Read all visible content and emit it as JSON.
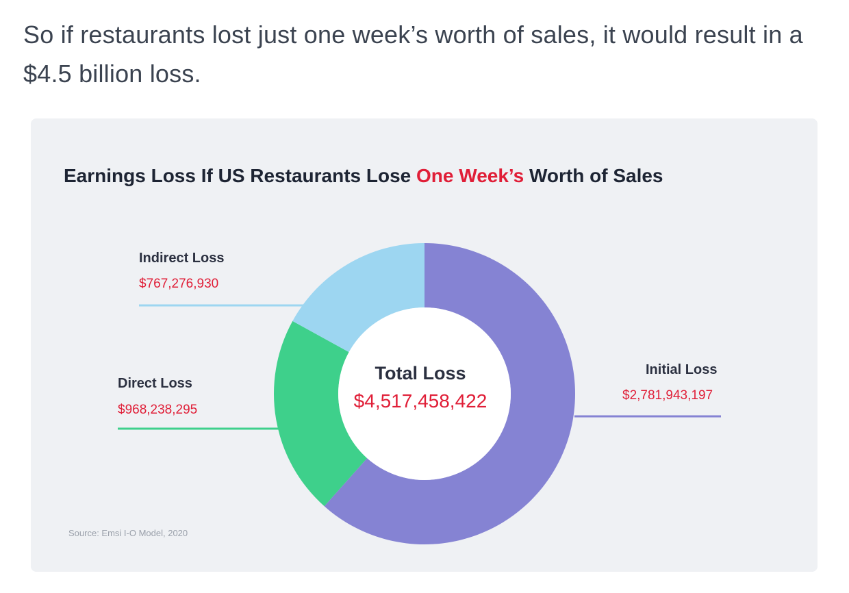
{
  "intro_text": "So if restaurants lost just one week’s worth of sales, it would result in a $4.5 billion loss.",
  "chart_data": {
    "type": "pie",
    "title_parts": {
      "before": "Earnings Loss If US Restaurants Lose ",
      "highlight": "One Week’s",
      "after": " Worth of Sales"
    },
    "center": {
      "label": "Total Loss",
      "value": "$4,517,458,422"
    },
    "slices": [
      {
        "name": "Initial Loss",
        "value": 2781943197,
        "value_label": "$2,781,943,197",
        "color": "#8583d3"
      },
      {
        "name": "Direct Loss",
        "value": 968238295,
        "value_label": "$968,238,295",
        "color": "#3ed08b"
      },
      {
        "name": "Indirect Loss",
        "value": 767276930,
        "value_label": "$767,276,930",
        "color": "#9dd6f1"
      }
    ],
    "source": "Source: Emsi I-O Model, 2020"
  },
  "colors": {
    "highlight": "#e01e37",
    "card_bg": "#eff1f4",
    "title": "#1d2433"
  }
}
